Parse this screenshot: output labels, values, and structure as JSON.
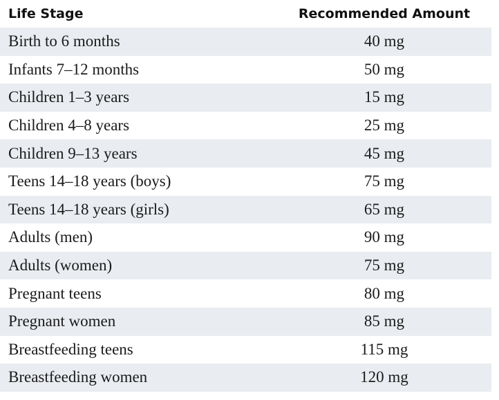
{
  "table": {
    "header": [
      "Life Stage",
      "Recommended Amount"
    ],
    "rows": [
      [
        "Birth to 6 months",
        "40 mg"
      ],
      [
        "Infants 7–12 months",
        "50 mg"
      ],
      [
        "Children 1–3 years",
        "15 mg"
      ],
      [
        "Children 4–8 years",
        "25 mg"
      ],
      [
        "Children 9–13 years",
        "45 mg"
      ],
      [
        "Teens 14–18 years (boys)",
        "75 mg"
      ],
      [
        "Teens 14–18 years (girls)",
        "65 mg"
      ],
      [
        "Adults (men)",
        "90 mg"
      ],
      [
        "Adults (women)",
        "75 mg"
      ],
      [
        "Pregnant teens",
        "80 mg"
      ],
      [
        "Pregnant women",
        "85 mg"
      ],
      [
        "Breastfeeding teens",
        "115 mg"
      ],
      [
        "Breastfeeding women",
        "120 mg"
      ]
    ]
  }
}
